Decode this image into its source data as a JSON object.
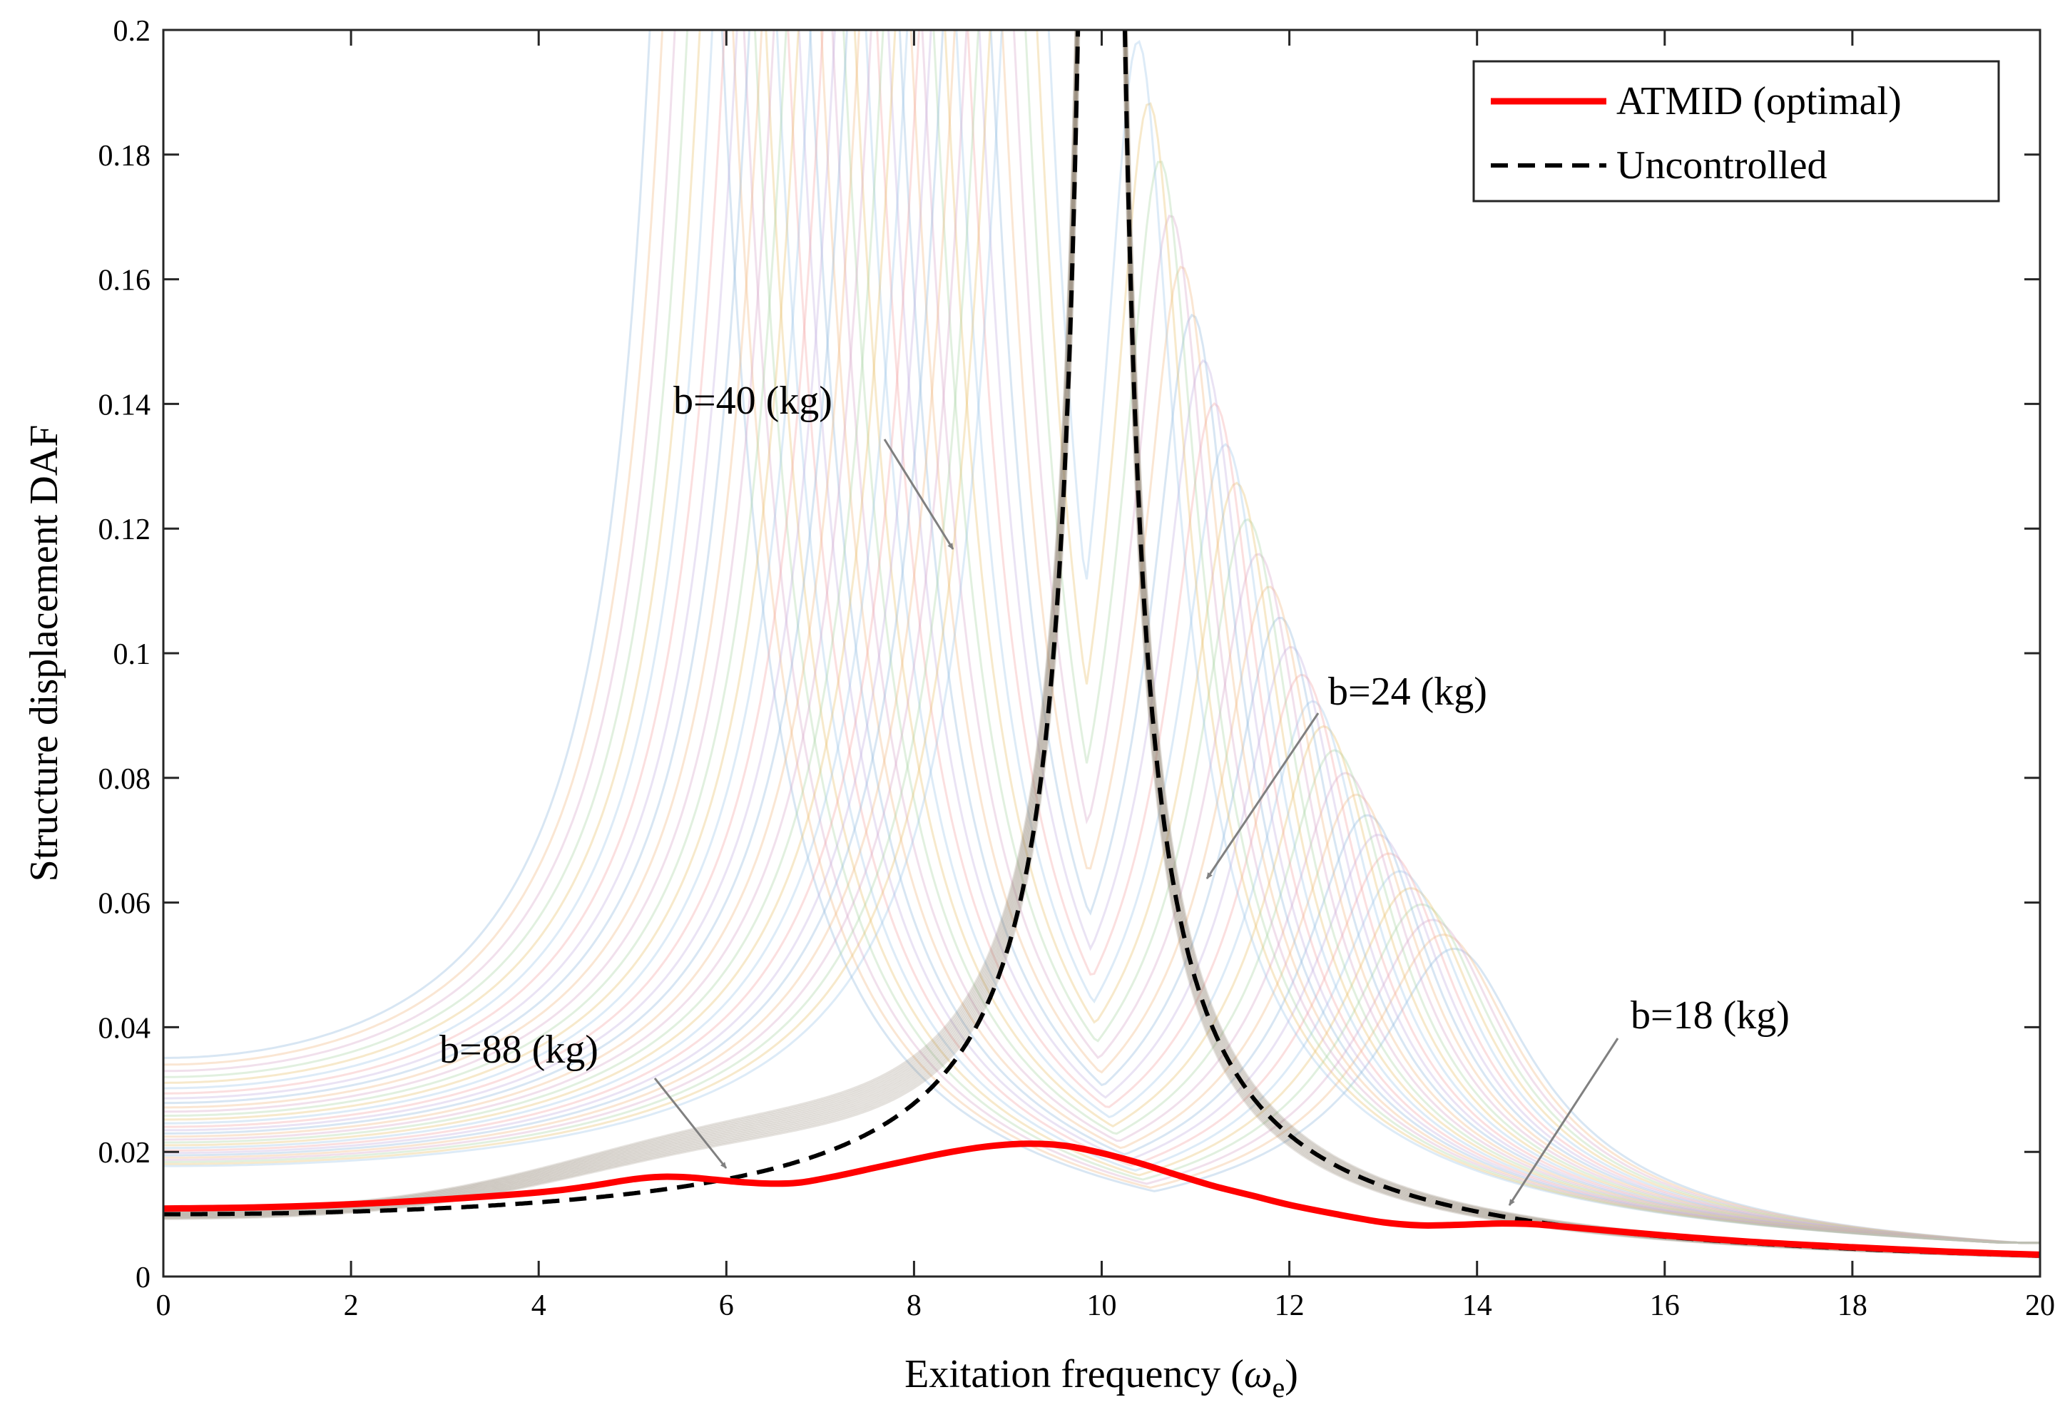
{
  "chart_data": {
    "type": "line",
    "title": "",
    "xlabel": "Exitation frequency (",
    "xlabel_symbol": "ω",
    "xlabel_subscript": "e",
    "xlabel_close": ")",
    "ylabel": "Structure displacement DAF",
    "xlim": [
      0,
      20
    ],
    "ylim": [
      0,
      0.2
    ],
    "xticks": [
      0,
      2,
      4,
      6,
      8,
      10,
      12,
      14,
      16,
      18,
      20
    ],
    "yticks": [
      0,
      0.02,
      0.04,
      0.06,
      0.08,
      0.1,
      0.12,
      0.14,
      0.16,
      0.18,
      0.2
    ],
    "ytick_labels": [
      "0",
      "0.02",
      "0.04",
      "0.06",
      "0.08",
      "0.1",
      "0.12",
      "0.14",
      "0.16",
      "0.18",
      "0.2"
    ],
    "legend_position": "top-right",
    "series": [
      {
        "name": "ATMID (optimal)",
        "color": "#ff0000",
        "style": "solid",
        "x": [
          0,
          1,
          2,
          3,
          4,
          4.5,
          5,
          5.3,
          5.6,
          5.9,
          6.2,
          6.5,
          6.8,
          7.2,
          7.6,
          8.0,
          8.4,
          8.8,
          9.2,
          9.6,
          10.0,
          10.4,
          10.8,
          11.2,
          11.6,
          12.0,
          12.5,
          13.0,
          13.4,
          13.8,
          14.2,
          14.6,
          15.0,
          16.0,
          17.0,
          18.0,
          19.0,
          20.0
        ],
        "y": [
          0.0109,
          0.0111,
          0.0116,
          0.0124,
          0.0135,
          0.0144,
          0.0156,
          0.016,
          0.0159,
          0.0155,
          0.0151,
          0.0149,
          0.0151,
          0.0162,
          0.0175,
          0.0188,
          0.02,
          0.0209,
          0.0213,
          0.021,
          0.0198,
          0.0182,
          0.0163,
          0.0145,
          0.013,
          0.0115,
          0.01,
          0.0087,
          0.0082,
          0.0083,
          0.0085,
          0.0084,
          0.0079,
          0.0066,
          0.0055,
          0.0047,
          0.004,
          0.0035
        ]
      },
      {
        "name": "Uncontrolled",
        "color": "#000000",
        "style": "dashed",
        "model": "1 / |wn^2 - w^2| with wn = 10 (DAF of undamped SDOF structure)"
      }
    ],
    "background_family": {
      "description": "Faint parametric curves for varying inertance b",
      "count": 30
    },
    "annotations": [
      {
        "text": "b=40 (kg)",
        "x": 8.3,
        "y": 0.117
      },
      {
        "text": "b=24 (kg)",
        "x": 11.1,
        "y": 0.063
      },
      {
        "text": "b=88 (kg)",
        "x": 6.0,
        "y": 0.0175
      },
      {
        "text": "b=18 (kg)",
        "x": 14.3,
        "y": 0.011
      }
    ]
  }
}
